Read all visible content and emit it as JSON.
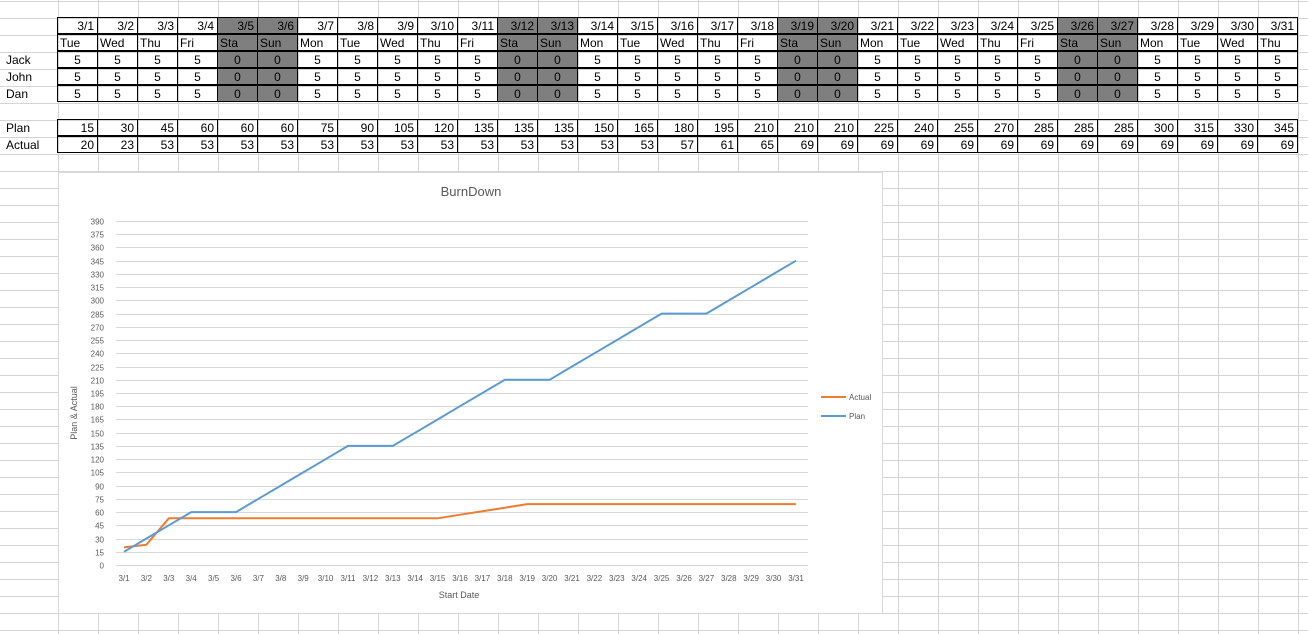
{
  "sheet": {
    "dates": [
      "3/1",
      "3/2",
      "3/3",
      "3/4",
      "3/5",
      "3/6",
      "3/7",
      "3/8",
      "3/9",
      "3/10",
      "3/11",
      "3/12",
      "3/13",
      "3/14",
      "3/15",
      "3/16",
      "3/17",
      "3/18",
      "3/19",
      "3/20",
      "3/21",
      "3/22",
      "3/23",
      "3/24",
      "3/25",
      "3/26",
      "3/27",
      "3/28",
      "3/29",
      "3/30",
      "3/31"
    ],
    "days": [
      "Tue",
      "Wed",
      "Thu",
      "Fri",
      "Sta",
      "Sun",
      "Mon",
      "Tue",
      "Wed",
      "Thu",
      "Fri",
      "Sta",
      "Sun",
      "Mon",
      "Tue",
      "Wed",
      "Thu",
      "Fri",
      "Sta",
      "Sun",
      "Mon",
      "Tue",
      "Wed",
      "Thu",
      "Fri",
      "Sta",
      "Sun",
      "Mon",
      "Tue",
      "Wed",
      "Thu"
    ],
    "weekend_cols": [
      4,
      5,
      11,
      12,
      18,
      19,
      25,
      26
    ],
    "people": [
      {
        "name": "Jack",
        "values": [
          5,
          5,
          5,
          5,
          0,
          0,
          5,
          5,
          5,
          5,
          5,
          0,
          0,
          5,
          5,
          5,
          5,
          5,
          0,
          0,
          5,
          5,
          5,
          5,
          5,
          0,
          0,
          5,
          5,
          5,
          5
        ]
      },
      {
        "name": "John",
        "values": [
          5,
          5,
          5,
          5,
          0,
          0,
          5,
          5,
          5,
          5,
          5,
          0,
          0,
          5,
          5,
          5,
          5,
          5,
          0,
          0,
          5,
          5,
          5,
          5,
          5,
          0,
          0,
          5,
          5,
          5,
          5
        ]
      },
      {
        "name": "Dan",
        "values": [
          5,
          5,
          5,
          5,
          0,
          0,
          5,
          5,
          5,
          5,
          5,
          0,
          0,
          5,
          5,
          5,
          5,
          5,
          0,
          0,
          5,
          5,
          5,
          5,
          5,
          0,
          0,
          5,
          5,
          5,
          5
        ]
      }
    ],
    "plan_label": "Plan",
    "actual_label": "Actual",
    "plan": [
      15,
      30,
      45,
      60,
      60,
      60,
      75,
      90,
      105,
      120,
      135,
      135,
      135,
      150,
      165,
      180,
      195,
      210,
      210,
      210,
      225,
      240,
      255,
      270,
      285,
      285,
      285,
      300,
      315,
      330,
      345
    ],
    "actual": [
      20,
      23,
      53,
      53,
      53,
      53,
      53,
      53,
      53,
      53,
      53,
      53,
      53,
      53,
      53,
      57,
      61,
      65,
      69,
      69,
      69,
      69,
      69,
      69,
      69,
      69,
      69,
      69,
      69,
      69,
      69
    ],
    "colors": {
      "weekend": "#7f7f7f",
      "border": "#000000",
      "gridline": "#d4d4d4"
    }
  },
  "chart_data": {
    "type": "line",
    "title": "BurnDown",
    "xlabel": "Start Date",
    "ylabel": "Plan & Actual",
    "categories": [
      "3/1",
      "3/2",
      "3/3",
      "3/4",
      "3/5",
      "3/6",
      "3/7",
      "3/8",
      "3/9",
      "3/10",
      "3/11",
      "3/12",
      "3/13",
      "3/14",
      "3/15",
      "3/16",
      "3/17",
      "3/18",
      "3/19",
      "3/20",
      "3/21",
      "3/22",
      "3/23",
      "3/24",
      "3/25",
      "3/26",
      "3/27",
      "3/28",
      "3/29",
      "3/30",
      "3/31"
    ],
    "series": [
      {
        "name": "Actual",
        "color": "#ed7d31",
        "values": [
          20,
          23,
          53,
          53,
          53,
          53,
          53,
          53,
          53,
          53,
          53,
          53,
          53,
          53,
          53,
          57,
          61,
          65,
          69,
          69,
          69,
          69,
          69,
          69,
          69,
          69,
          69,
          69,
          69,
          69,
          69
        ]
      },
      {
        "name": "Plan",
        "color": "#5b9bd5",
        "values": [
          15,
          30,
          45,
          60,
          60,
          60,
          75,
          90,
          105,
          120,
          135,
          135,
          135,
          150,
          165,
          180,
          195,
          210,
          210,
          210,
          225,
          240,
          255,
          270,
          285,
          285,
          285,
          300,
          315,
          330,
          345
        ]
      }
    ],
    "ylim": [
      0,
      390
    ],
    "ytick_step": 15,
    "grid": true,
    "legend": "right"
  }
}
